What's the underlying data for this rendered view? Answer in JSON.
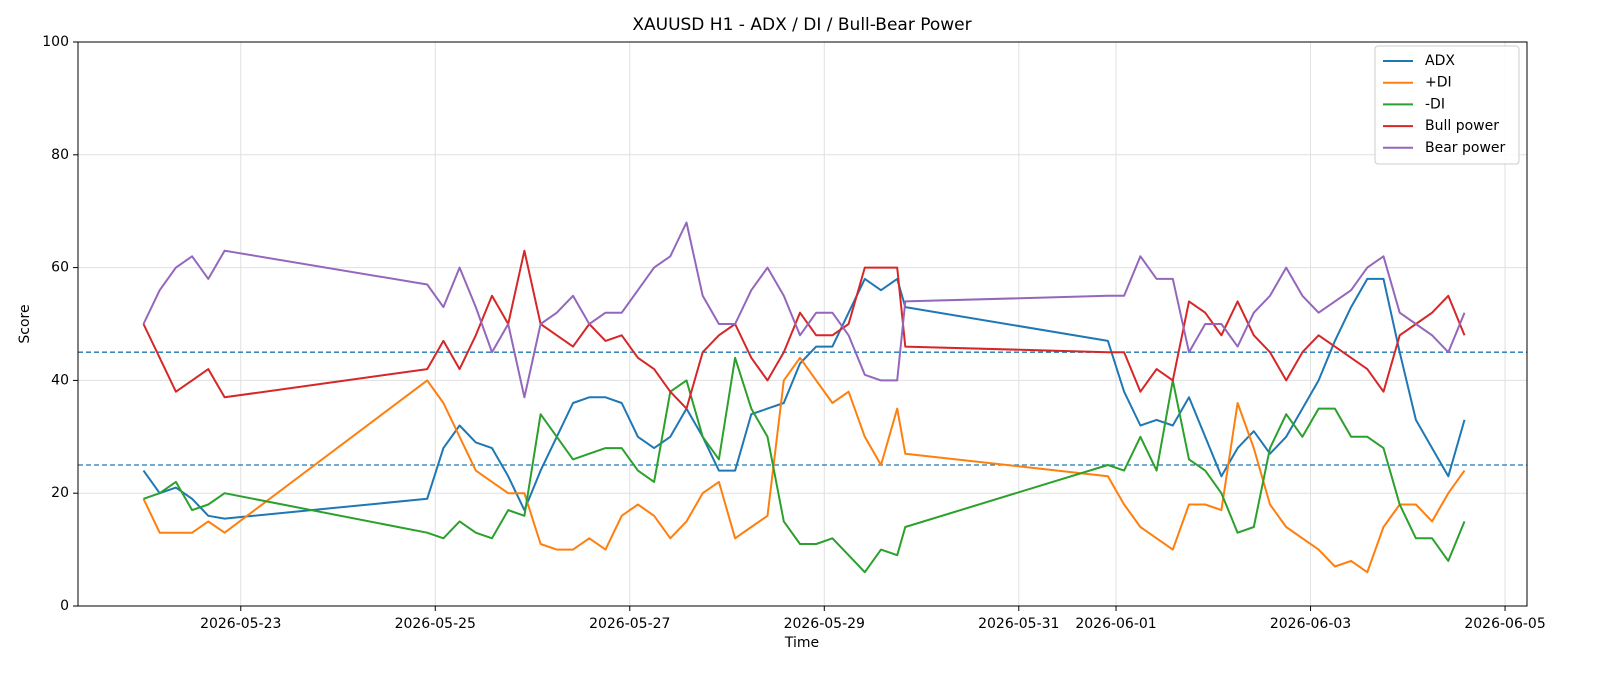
{
  "chart_data": {
    "type": "line",
    "title": "XAUUSD H1 - ADX / DI / Bull-Bear Power",
    "xlabel": "Time",
    "ylabel": "Score",
    "x": [
      "2026-05-22 00:00",
      "2026-05-22 04:00",
      "2026-05-22 08:00",
      "2026-05-22 12:00",
      "2026-05-22 16:00",
      "2026-05-22 20:00",
      "2026-05-24 22:00",
      "2026-05-25 02:00",
      "2026-05-25 06:00",
      "2026-05-25 10:00",
      "2026-05-25 14:00",
      "2026-05-25 18:00",
      "2026-05-25 22:00",
      "2026-05-26 02:00",
      "2026-05-26 06:00",
      "2026-05-26 10:00",
      "2026-05-26 14:00",
      "2026-05-26 18:00",
      "2026-05-26 22:00",
      "2026-05-27 02:00",
      "2026-05-27 06:00",
      "2026-05-27 10:00",
      "2026-05-27 14:00",
      "2026-05-27 18:00",
      "2026-05-27 22:00",
      "2026-05-28 02:00",
      "2026-05-28 06:00",
      "2026-05-28 10:00",
      "2026-05-28 14:00",
      "2026-05-28 18:00",
      "2026-05-28 22:00",
      "2026-05-29 02:00",
      "2026-05-29 06:00",
      "2026-05-29 10:00",
      "2026-05-29 14:00",
      "2026-05-29 18:00",
      "2026-05-29 20:00",
      "2026-05-31 22:00",
      "2026-06-01 02:00",
      "2026-06-01 06:00",
      "2026-06-01 10:00",
      "2026-06-01 14:00",
      "2026-06-01 18:00",
      "2026-06-01 22:00",
      "2026-06-02 02:00",
      "2026-06-02 06:00",
      "2026-06-02 10:00",
      "2026-06-02 14:00",
      "2026-06-02 18:00",
      "2026-06-02 22:00",
      "2026-06-03 02:00",
      "2026-06-03 06:00",
      "2026-06-03 10:00",
      "2026-06-03 14:00",
      "2026-06-03 18:00",
      "2026-06-03 22:00",
      "2026-06-04 02:00",
      "2026-06-04 06:00",
      "2026-06-04 10:00",
      "2026-06-04 14:00"
    ],
    "series": [
      {
        "name": "ADX",
        "color": "#1f77b4",
        "values": [
          24,
          20,
          21,
          19,
          16,
          15.5,
          19,
          28,
          32,
          29,
          28,
          23,
          17,
          24,
          30,
          36,
          37,
          37,
          36,
          30,
          28,
          30,
          35,
          30,
          24,
          24,
          34,
          35,
          36,
          43,
          46,
          46,
          52,
          58,
          56,
          58,
          53,
          47,
          38,
          32,
          33,
          32,
          37,
          30,
          23,
          28,
          31,
          27,
          30,
          35,
          40,
          47,
          53,
          58,
          58,
          45,
          33,
          28,
          23,
          33
        ]
      },
      {
        "name": "+DI",
        "color": "#ff7f0e",
        "values": [
          19,
          13,
          13,
          13,
          15,
          13,
          40,
          36,
          30,
          24,
          22,
          20,
          20,
          11,
          10,
          10,
          12,
          10,
          16,
          18,
          16,
          12,
          15,
          20,
          22,
          12,
          14,
          16,
          40,
          44,
          40,
          36,
          38,
          30,
          25,
          35,
          27,
          23,
          18,
          14,
          12,
          10,
          18,
          18,
          17,
          36,
          28,
          18,
          14,
          12,
          10,
          7,
          8,
          6,
          14,
          18,
          18,
          15,
          20,
          24
        ]
      },
      {
        "name": "-DI",
        "color": "#2ca02c",
        "values": [
          19,
          20,
          22,
          17,
          18,
          20,
          13,
          12,
          15,
          13,
          12,
          17,
          16,
          34,
          30,
          26,
          27,
          28,
          28,
          24,
          22,
          38,
          40,
          30,
          26,
          44,
          35,
          30,
          15,
          11,
          11,
          12,
          9,
          6,
          10,
          9,
          14,
          25,
          24,
          30,
          24,
          40,
          26,
          24,
          20,
          13,
          14,
          28,
          34,
          30,
          35,
          35,
          30,
          30,
          28,
          18,
          12,
          12,
          8,
          15
        ]
      },
      {
        "name": "Bull power",
        "color": "#d62728",
        "values": [
          50,
          44,
          38,
          40,
          42,
          37,
          42,
          47,
          42,
          48,
          55,
          50,
          63,
          50,
          48,
          46,
          50,
          47,
          48,
          44,
          42,
          38,
          35,
          45,
          48,
          50,
          44,
          40,
          45,
          52,
          48,
          48,
          50,
          60,
          60,
          60,
          46,
          45,
          45,
          38,
          42,
          40,
          54,
          52,
          48,
          54,
          48,
          45,
          40,
          45,
          48,
          46,
          44,
          42,
          38,
          48,
          50,
          52,
          55,
          48
        ]
      },
      {
        "name": "Bear power",
        "color": "#9467bd",
        "values": [
          50,
          56,
          60,
          62,
          58,
          63,
          57,
          53,
          60,
          53,
          45,
          50,
          37,
          50,
          52,
          55,
          50,
          52,
          52,
          56,
          60,
          62,
          68,
          55,
          50,
          50,
          56,
          60,
          55,
          48,
          52,
          52,
          48,
          41,
          40,
          40,
          54,
          55,
          55,
          62,
          58,
          58,
          45,
          50,
          50,
          46,
          52,
          55,
          60,
          55,
          52,
          54,
          56,
          60,
          62,
          52,
          50,
          48,
          45,
          52
        ]
      }
    ],
    "hlines": [
      {
        "value": 45,
        "color": "#1f77b4"
      },
      {
        "value": 25,
        "color": "#1f77b4"
      }
    ],
    "xlim": [
      "2026-05-21 07:50",
      "2026-06-05 05:25"
    ],
    "xticks": [
      "2026-05-23",
      "2026-05-25",
      "2026-05-27",
      "2026-05-29",
      "2026-05-31",
      "2026-06-01",
      "2026-06-03",
      "2026-06-05"
    ],
    "ylim": [
      0,
      100
    ],
    "yticks": [
      0,
      20,
      40,
      60,
      80,
      100
    ],
    "grid": true,
    "legend": "upper right"
  }
}
